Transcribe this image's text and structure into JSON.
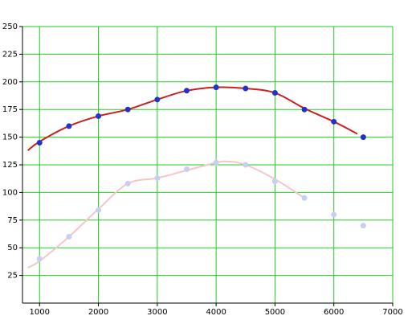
{
  "chart_data": {
    "type": "line",
    "xlim": [
      710,
      7000
    ],
    "xticks": [
      1000,
      2000,
      3000,
      4000,
      5000,
      6000,
      7000
    ],
    "ylim": [
      0,
      250
    ],
    "yticks": [
      25,
      50,
      75,
      100,
      125,
      150,
      175,
      200,
      225,
      250
    ],
    "grid": true,
    "grid_color": "#22cc22",
    "series": [
      {
        "mode": "curve",
        "color": "#f5c6c6",
        "x": [
          800,
          1000,
          1500,
          2000,
          2500,
          3000,
          3500,
          4000,
          4200,
          4500,
          5000,
          5500
        ],
        "values": [
          32,
          38,
          60,
          85,
          108,
          113,
          120,
          127,
          128,
          125,
          112,
          95
        ]
      },
      {
        "mode": "markers",
        "color": "#c6cff2",
        "x": [
          1000,
          1500,
          2000,
          2500,
          3000,
          3500,
          4000,
          4500,
          5000,
          5500,
          6000,
          6500
        ],
        "values": [
          40,
          60,
          84,
          108,
          113,
          121,
          127,
          125,
          110,
          95,
          80,
          70
        ]
      },
      {
        "mode": "curve",
        "color": "#cc2020",
        "x": [
          800,
          1000,
          1500,
          2000,
          2500,
          3000,
          3500,
          4000,
          4500,
          5000,
          5500,
          6000,
          6400
        ],
        "values": [
          138,
          146,
          160,
          169,
          175,
          184,
          192,
          195,
          194,
          190,
          176,
          164,
          153
        ]
      },
      {
        "mode": "markers",
        "color": "#2233cc",
        "x": [
          1000,
          1500,
          2000,
          2500,
          3000,
          3500,
          4000,
          4500,
          5000,
          5500,
          6000,
          6500
        ],
        "values": [
          145,
          160,
          169,
          175,
          184,
          192,
          195,
          194,
          190,
          175,
          164,
          150
        ]
      }
    ]
  }
}
